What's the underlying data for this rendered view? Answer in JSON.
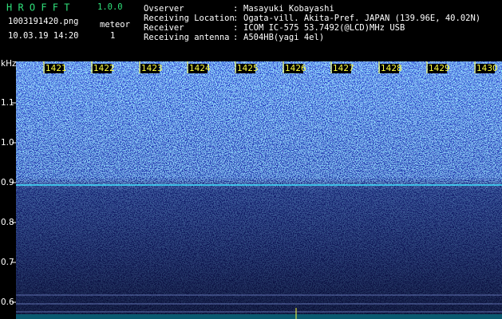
{
  "header": {
    "title": "H R O F F T",
    "version": "1.0.0",
    "filename": "1003191420.png",
    "datetime": "10.03.19 14:20",
    "mode": "meteor",
    "count": "1"
  },
  "info": [
    {
      "label": "Ovserver",
      "value": "Masayuki Kobayashi"
    },
    {
      "label": "Receiving Location",
      "value": "Ogata-vill. Akita-Pref. JAPAN (139.96E, 40.02N)"
    },
    {
      "label": "Receiver",
      "value": "ICOM IC-575 53.7492(@LCD)MHz USB"
    },
    {
      "label": "Receiving antenna",
      "value": "A504HB(yagi 4el)"
    }
  ],
  "separator": ":",
  "time_labels": [
    "1421",
    "1422",
    "1423",
    "1424",
    "1425",
    "1426",
    "1427",
    "1428",
    "1429",
    "1430"
  ],
  "y_axis": {
    "unit": "kHz",
    "labels": [
      "1.1",
      "1.0",
      "0.9",
      "0.8",
      "0.7",
      "0.6"
    ]
  }
}
